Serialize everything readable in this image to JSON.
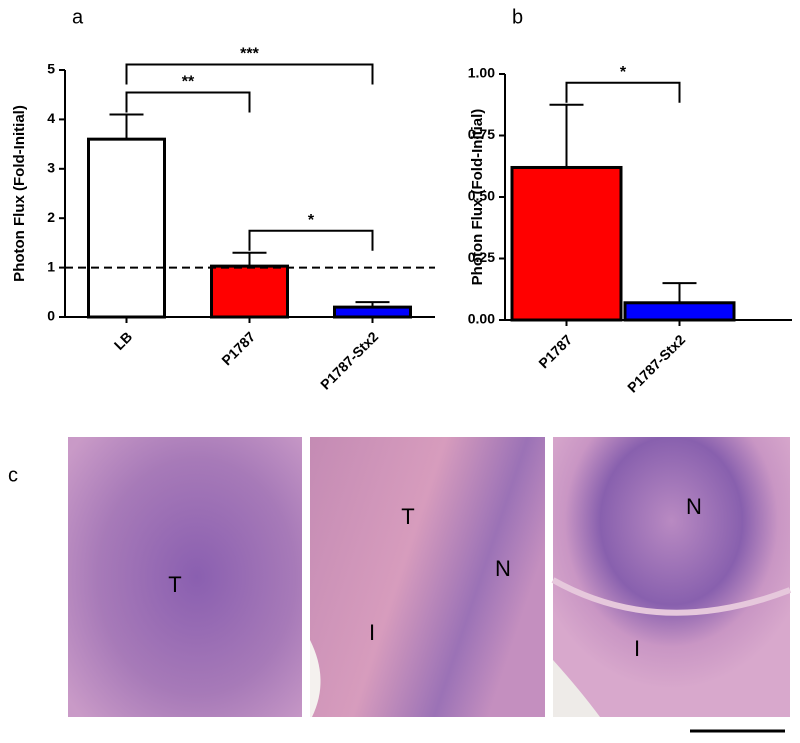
{
  "chart_data": [
    {
      "type": "bar",
      "panel_label": "a",
      "y_label": "Photon Flux (Fold-Initial)",
      "categories": [
        "LB",
        "P1787",
        "P1787-Stx2"
      ],
      "values": [
        3.6,
        1.03,
        0.2
      ],
      "errors": [
        0.5,
        0.27,
        0.1
      ],
      "colors": [
        "#ffffff",
        "#ff0000",
        "#0000ff"
      ],
      "ylim": [
        0,
        5
      ],
      "yticks": [
        0,
        1,
        2,
        3,
        4,
        5
      ],
      "reference_line": 1,
      "significance": [
        {
          "from": 0,
          "to": 1,
          "label": "**"
        },
        {
          "from": 0,
          "to": 2,
          "label": "***"
        },
        {
          "from": 1,
          "to": 2,
          "label": "*"
        }
      ]
    },
    {
      "type": "bar",
      "panel_label": "b",
      "y_label": "Photon Flux (Fold-Initial)",
      "categories": [
        "P1787",
        "P1787-Stx2"
      ],
      "values": [
        0.62,
        0.07
      ],
      "errors": [
        0.255,
        0.08
      ],
      "colors": [
        "#ff0000",
        "#0000ff"
      ],
      "ylim": [
        0,
        1
      ],
      "yticks": [
        {
          "value": 0,
          "label": "0.00"
        },
        {
          "value": 0.25,
          "label": "0.25"
        },
        {
          "value": 0.5,
          "label": "0.50"
        },
        {
          "value": 0.75,
          "label": "0.75"
        },
        {
          "value": 1,
          "label": "1.00"
        }
      ],
      "significance": [
        {
          "from": 0,
          "to": 1,
          "label": "*"
        }
      ]
    }
  ],
  "histology": {
    "panel_label": "c",
    "images": [
      {
        "labels": [
          "T"
        ]
      },
      {
        "labels": [
          "T",
          "N",
          "I"
        ]
      },
      {
        "labels": [
          "N",
          "I"
        ]
      }
    ]
  }
}
